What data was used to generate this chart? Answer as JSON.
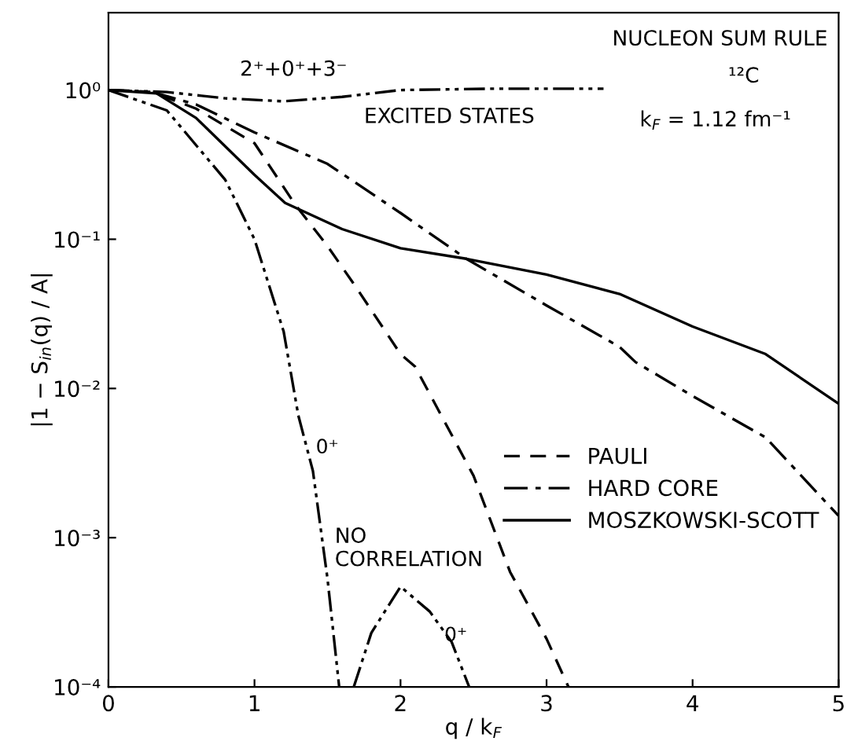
{
  "chart_data": {
    "type": "line",
    "xlabel": "q / k$_{F}$",
    "ylabel": "|1 − S$_{in}$(q) / A|",
    "log": "y",
    "xlim": [
      0,
      5
    ],
    "ylim": [
      0.0001,
      3.3
    ],
    "xticks": [
      0,
      1,
      2,
      3,
      4,
      5
    ],
    "yticks": [
      {
        "value": 0.0001,
        "label": "10⁻⁴"
      },
      {
        "value": 0.001,
        "label": "10⁻³"
      },
      {
        "value": 0.01,
        "label": "10⁻²"
      },
      {
        "value": 0.1,
        "label": "10⁻¹"
      },
      {
        "value": 1,
        "label": "10⁰"
      }
    ],
    "grid": false,
    "legend": "lower right",
    "series": [
      {
        "name": "PAULI",
        "color": "#000000",
        "line_style": "dashed",
        "x": [
          0,
          0.3,
          0.6,
          1.0,
          1.28,
          1.5,
          1.7,
          2.0,
          2.1,
          2.5,
          2.75,
          3.0,
          3.15
        ],
        "values": [
          1,
          0.97,
          0.75,
          0.44,
          0.17,
          0.09,
          0.047,
          0.017,
          0.014,
          0.0026,
          0.00059,
          0.00021,
          0.0001
        ]
      },
      {
        "name": "HARD CORE",
        "color": "#000000",
        "line_style": "dashdot",
        "x": [
          0,
          0.3,
          0.6,
          1.0,
          1.5,
          2.0,
          2.45,
          3.0,
          3.5,
          3.61,
          4.0,
          4.5,
          5.0
        ],
        "values": [
          1,
          0.97,
          0.8,
          0.52,
          0.32,
          0.15,
          0.074,
          0.036,
          0.019,
          0.015,
          0.0089,
          0.0047,
          0.0014
        ]
      },
      {
        "name": "MOSZKOWSKI-SCOTT",
        "color": "#000000",
        "line_style": "solid",
        "x": [
          0,
          0.33,
          0.6,
          1.0,
          1.21,
          1.6,
          2.0,
          2.45,
          3.0,
          3.5,
          4.0,
          4.5,
          5.0
        ],
        "values": [
          1,
          0.95,
          0.65,
          0.27,
          0.175,
          0.117,
          0.087,
          0.074,
          0.058,
          0.043,
          0.026,
          0.017,
          0.0079
        ]
      },
      {
        "color": "#000000",
        "line_style": "dashdotdot",
        "x": [
          0,
          0.4,
          0.8,
          1.0,
          1.2,
          1.3,
          1.4,
          1.5,
          1.58
        ],
        "values": [
          1,
          0.73,
          0.25,
          0.1,
          0.024,
          0.0066,
          0.0028,
          0.00053,
          0.0001
        ]
      },
      {
        "color": "#000000",
        "line_style": "dashdotdot",
        "x": [
          1.68,
          1.8,
          2.0,
          2.2,
          2.35,
          2.47
        ],
        "values": [
          0.0001,
          0.00023,
          0.00047,
          0.00032,
          0.0002,
          0.0001
        ]
      },
      {
        "color": "#000000",
        "line_style": "dashdotdot",
        "x": [
          0,
          0.4,
          0.8,
          1.2,
          1.6,
          2.0,
          2.6,
          3.39
        ],
        "values": [
          1,
          0.97,
          0.88,
          0.84,
          0.9,
          1.0,
          1.02,
          1.02
        ]
      }
    ],
    "annotations": [
      "NUCLEON SUM RULE",
      "¹²C",
      "k$_{F}$ = 1.12 fm⁻¹",
      "2⁺+0⁺+3⁻",
      "EXCITED STATES",
      {
        "text": "0⁺",
        "x": 1.42,
        "y": 0.004
      },
      "NO\nCORRELATION",
      {
        "text": "0⁺",
        "x": 2.3,
        "y": 0.00022
      }
    ]
  }
}
